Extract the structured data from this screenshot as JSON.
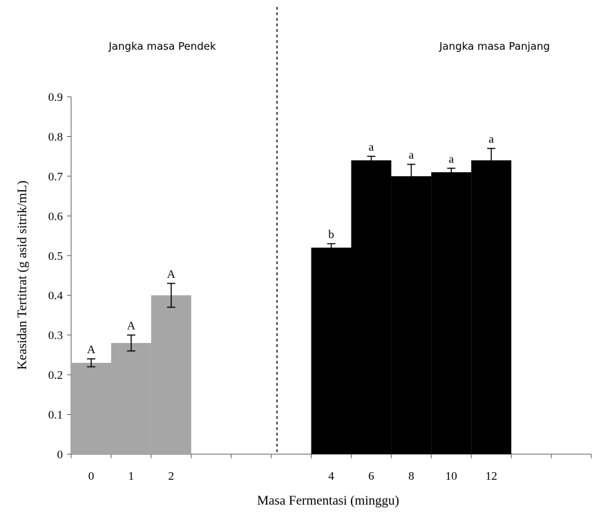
{
  "chart_data": {
    "type": "bar",
    "xlabel": "Masa Fermentasi (minggu)",
    "ylabel": "Keasidan Tertitrat (g asid sitrik/mL)",
    "ylim": [
      0,
      0.9
    ],
    "yticks": [
      "0",
      "0.1",
      "0.2",
      "0.3",
      "0.4",
      "0.5",
      "0.6",
      "0.7",
      "0.8",
      "0.9"
    ],
    "grid": false,
    "groups": [
      {
        "label": "Jangka masa Pendek",
        "color": "#a6a6a6",
        "categories": [
          "0",
          "1",
          "2"
        ],
        "values": [
          0.23,
          0.28,
          0.4
        ],
        "errors": [
          0.01,
          0.02,
          0.03
        ],
        "significance": [
          "A",
          "A",
          "A"
        ]
      },
      {
        "label": "Jangka masa Panjang",
        "color": "#000000",
        "categories": [
          "4",
          "6",
          "8",
          "10",
          "12"
        ],
        "values": [
          0.52,
          0.74,
          0.7,
          0.71,
          0.74
        ],
        "errors": [
          0.01,
          0.01,
          0.03,
          0.01,
          0.03
        ],
        "significance": [
          "b",
          "a",
          "a",
          "a",
          "a"
        ]
      }
    ]
  }
}
